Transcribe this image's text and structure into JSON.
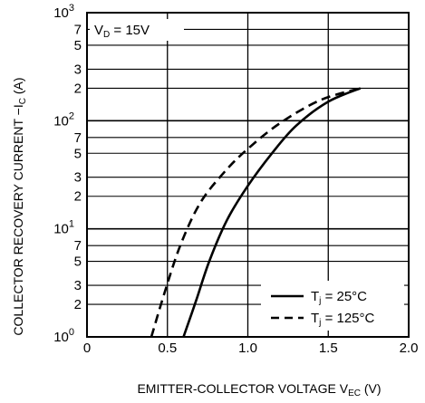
{
  "chart_data": {
    "type": "line",
    "title": "",
    "xlabel": "EMITTER-COLLECTOR VOLTAGE",
    "xlabel_symbol": "V",
    "xlabel_sub": "EC",
    "xlabel_unit": "(V)",
    "ylabel": "COLLECTOR RECOVERY CURRENT",
    "ylabel_symbol": "−I",
    "ylabel_sub": "C",
    "ylabel_unit": "(A)",
    "xlim": [
      0,
      2.0
    ],
    "ylim": [
      1,
      1000
    ],
    "yscale": "log",
    "grid": true,
    "x_ticks": [
      "0",
      "0.5",
      "1.0",
      "1.5",
      "2.0"
    ],
    "y_ticks": [
      {
        "value": 1000,
        "mantissa": "10",
        "exp": "3"
      },
      {
        "value": 700,
        "mantissa": "7",
        "exp": ""
      },
      {
        "value": 500,
        "mantissa": "5",
        "exp": ""
      },
      {
        "value": 300,
        "mantissa": "3",
        "exp": ""
      },
      {
        "value": 200,
        "mantissa": "2",
        "exp": ""
      },
      {
        "value": 100,
        "mantissa": "10",
        "exp": "2"
      },
      {
        "value": 70,
        "mantissa": "7",
        "exp": ""
      },
      {
        "value": 50,
        "mantissa": "5",
        "exp": ""
      },
      {
        "value": 30,
        "mantissa": "3",
        "exp": ""
      },
      {
        "value": 20,
        "mantissa": "2",
        "exp": ""
      },
      {
        "value": 10,
        "mantissa": "10",
        "exp": "1"
      },
      {
        "value": 7,
        "mantissa": "7",
        "exp": ""
      },
      {
        "value": 5,
        "mantissa": "5",
        "exp": ""
      },
      {
        "value": 3,
        "mantissa": "3",
        "exp": ""
      },
      {
        "value": 2,
        "mantissa": "2",
        "exp": ""
      },
      {
        "value": 1,
        "mantissa": "10",
        "exp": "0"
      }
    ],
    "annotation": {
      "symbol": "V",
      "sub": "D",
      "text": " = 15V"
    },
    "legend_placement": "bottom-right",
    "series": [
      {
        "name": "Tj = 25°C",
        "name_symbol": "T",
        "name_sub": "j",
        "name_text": " = 25°C",
        "style": "solid",
        "points": [
          [
            0.6,
            1
          ],
          [
            0.68,
            2.2
          ],
          [
            0.76,
            5
          ],
          [
            0.87,
            12
          ],
          [
            1.0,
            25
          ],
          [
            1.15,
            50
          ],
          [
            1.3,
            90
          ],
          [
            1.5,
            150
          ],
          [
            1.7,
            200
          ]
        ]
      },
      {
        "name": "Tj = 125°C",
        "name_symbol": "T",
        "name_sub": "j",
        "name_text": " = 125°C",
        "style": "dashed",
        "points": [
          [
            0.4,
            1
          ],
          [
            0.48,
            2.5
          ],
          [
            0.58,
            7
          ],
          [
            0.7,
            17
          ],
          [
            0.85,
            33
          ],
          [
            1.0,
            55
          ],
          [
            1.2,
            95
          ],
          [
            1.45,
            155
          ],
          [
            1.7,
            200
          ]
        ]
      }
    ]
  }
}
